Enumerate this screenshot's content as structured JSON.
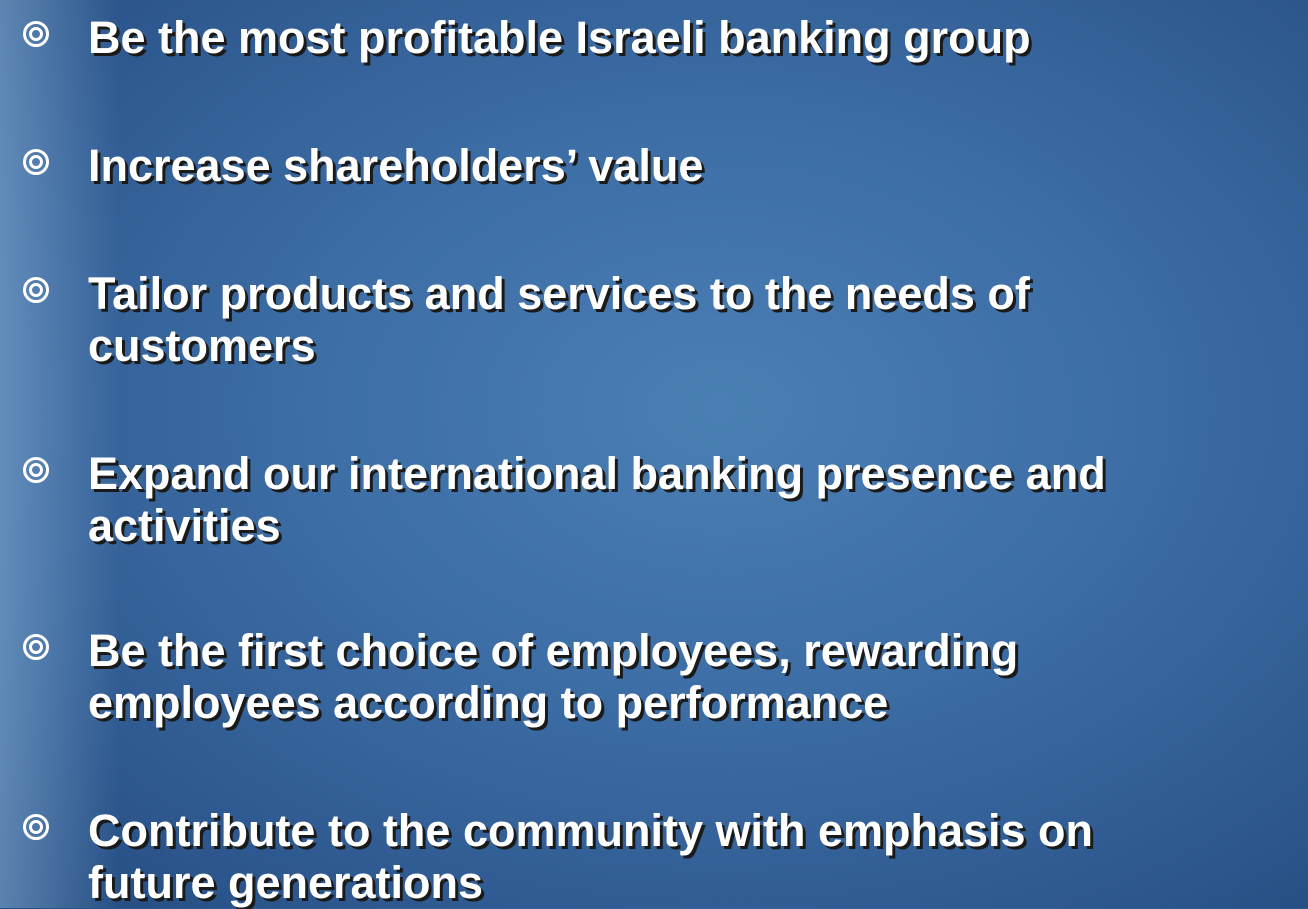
{
  "bullets": [
    [
      "Be the most profitable Israeli banking group"
    ],
    [
      "Increase shareholders’ value"
    ],
    [
      "Tailor products and services to the needs of",
      "customers"
    ],
    [
      "Expand our international banking presence and",
      "activities"
    ],
    [
      "Be the first choice of employees, rewarding",
      "employees according to performance"
    ],
    [
      "Contribute to the community with emphasis on",
      "future generations"
    ]
  ]
}
